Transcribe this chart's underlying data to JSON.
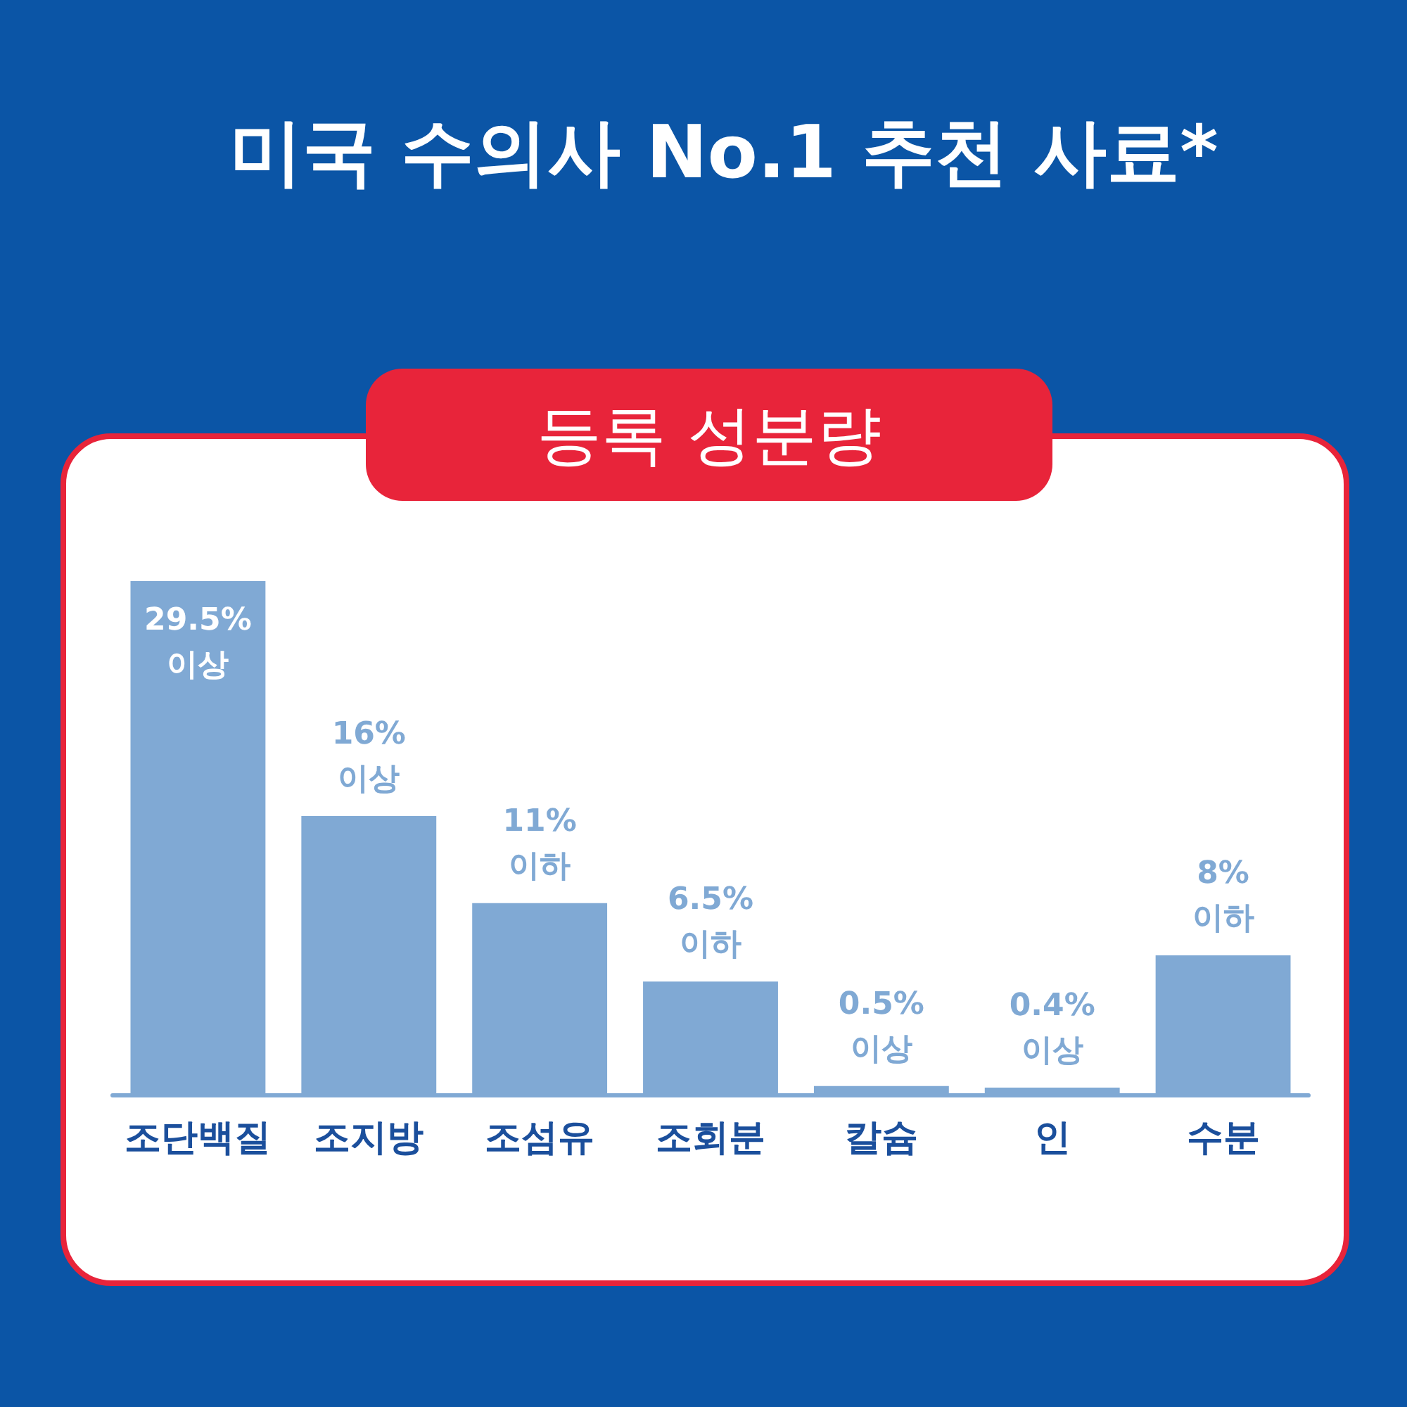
{
  "chart_data": {
    "type": "bar",
    "title": "미국 수의사 No.1 추천 사료*",
    "subtitle": "등록 성분량",
    "categories": [
      "조단백질",
      "조지방",
      "조섬유",
      "조회분",
      "칼슘",
      "인",
      "수분"
    ],
    "values": [
      29.5,
      16,
      11,
      6.5,
      0.5,
      0.4,
      8
    ],
    "value_labels": [
      "29.5%\n이상",
      "16%\n이상",
      "11%\n이하",
      "6.5%\n이하",
      "0.5%\n이상",
      "0.4%\n이상",
      "8%\n이하"
    ],
    "color": "#80a9d4"
  }
}
